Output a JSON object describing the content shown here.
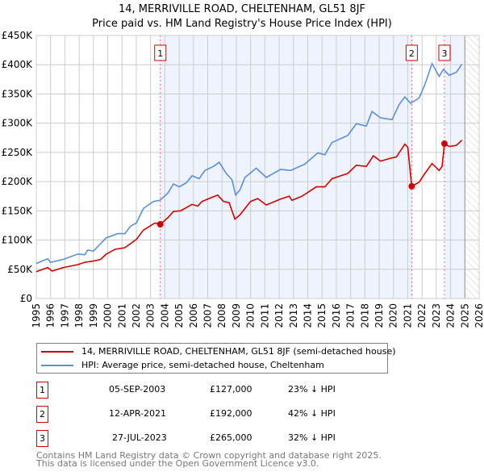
{
  "title": {
    "line1": "14, MERRIVILLE ROAD, CHELTENHAM, GL51 8JF",
    "line2": "Price paid vs. HM Land Registry's House Price Index (HPI)"
  },
  "chart_data": {
    "type": "line",
    "title": "14, MERRIVILLE ROAD, CHELTENHAM, GL51 8JF — Price paid vs. HM Land Registry's House Price Index (HPI)",
    "xlim": [
      1995,
      2026
    ],
    "ylim": [
      0,
      450000
    ],
    "x_ticks": [
      "1995",
      "1996",
      "1997",
      "1998",
      "1999",
      "2000",
      "2001",
      "2002",
      "2003",
      "2004",
      "2005",
      "2006",
      "2007",
      "2008",
      "2009",
      "2010",
      "2011",
      "2012",
      "2013",
      "2014",
      "2015",
      "2016",
      "2017",
      "2018",
      "2019",
      "2020",
      "2021",
      "2022",
      "2023",
      "2024",
      "2025",
      "2026"
    ],
    "y_ticks": [
      {
        "v": 0,
        "label": "£0"
      },
      {
        "v": 50000,
        "label": "£50K"
      },
      {
        "v": 100000,
        "label": "£100K"
      },
      {
        "v": 150000,
        "label": "£150K"
      },
      {
        "v": 200000,
        "label": "£200K"
      },
      {
        "v": 250000,
        "label": "£250K"
      },
      {
        "v": 300000,
        "label": "£300K"
      },
      {
        "v": 350000,
        "label": "£350K"
      },
      {
        "v": 400000,
        "label": "£400K"
      },
      {
        "v": 450000,
        "label": "£450K"
      }
    ],
    "grid": true,
    "future_hatch_from": 2025,
    "series": [
      {
        "name": "14, MERRIVILLE ROAD, CHELTENHAM, GL51 8JF (semi-detached house)",
        "color": "#cc0000",
        "points": [
          [
            1995,
            46
          ],
          [
            1995.8,
            53
          ],
          [
            1996.1,
            47
          ],
          [
            1996.9,
            53
          ],
          [
            1997.9,
            58
          ],
          [
            1998.4,
            62
          ],
          [
            1999,
            64
          ],
          [
            1999.5,
            67
          ],
          [
            1999.9,
            76
          ],
          [
            2000.5,
            84
          ],
          [
            2001.2,
            87
          ],
          [
            2001.6,
            94
          ],
          [
            2002,
            101
          ],
          [
            2002.5,
            117
          ],
          [
            2003.3,
            129
          ],
          [
            2003.68,
            127
          ],
          [
            2004.2,
            138
          ],
          [
            2004.6,
            149
          ],
          [
            2005.1,
            150
          ],
          [
            2005.9,
            161
          ],
          [
            2006.3,
            158
          ],
          [
            2006.6,
            166
          ],
          [
            2007.4,
            174
          ],
          [
            2007.7,
            177
          ],
          [
            2008.1,
            166
          ],
          [
            2008.5,
            164
          ],
          [
            2008.9,
            136
          ],
          [
            2009.25,
            143
          ],
          [
            2010,
            166
          ],
          [
            2010.5,
            171
          ],
          [
            2011.1,
            160
          ],
          [
            2012.1,
            170
          ],
          [
            2012.7,
            175
          ],
          [
            2012.9,
            168
          ],
          [
            2013.6,
            175
          ],
          [
            2014.6,
            191
          ],
          [
            2015.2,
            191
          ],
          [
            2015.7,
            205
          ],
          [
            2016.8,
            214
          ],
          [
            2017.4,
            228
          ],
          [
            2018.1,
            226
          ],
          [
            2018.6,
            244
          ],
          [
            2019.1,
            235
          ],
          [
            2019.8,
            240
          ],
          [
            2020.2,
            242
          ],
          [
            2020.8,
            264
          ],
          [
            2021.0,
            259
          ],
          [
            2021.28,
            192
          ],
          [
            2021.8,
            199
          ],
          [
            2022.2,
            214
          ],
          [
            2022.7,
            231
          ],
          [
            2023.2,
            219
          ],
          [
            2023.4,
            226
          ],
          [
            2023.57,
            265
          ],
          [
            2023.9,
            260
          ],
          [
            2024.4,
            262
          ],
          [
            2024.8,
            271
          ]
        ]
      },
      {
        "name": "HPI: Average price, semi-detached house, Cheltenham",
        "color": "#5b8fd6",
        "points": [
          [
            1995,
            60
          ],
          [
            1995.8,
            68
          ],
          [
            1996,
            62
          ],
          [
            1996.9,
            67
          ],
          [
            1997.9,
            76
          ],
          [
            1998.4,
            75
          ],
          [
            1998.6,
            83
          ],
          [
            1999,
            81
          ],
          [
            1999.9,
            104
          ],
          [
            2000.7,
            111
          ],
          [
            2001.2,
            111
          ],
          [
            2001.6,
            124
          ],
          [
            2002,
            129
          ],
          [
            2002.5,
            154
          ],
          [
            2003.2,
            166
          ],
          [
            2003.65,
            168
          ],
          [
            2004.2,
            180
          ],
          [
            2004.6,
            196
          ],
          [
            2005,
            191
          ],
          [
            2005.5,
            198
          ],
          [
            2005.9,
            210
          ],
          [
            2006.4,
            205
          ],
          [
            2006.8,
            219
          ],
          [
            2007.4,
            226
          ],
          [
            2007.8,
            233
          ],
          [
            2008.3,
            214
          ],
          [
            2008.7,
            203
          ],
          [
            2008.95,
            177
          ],
          [
            2009.26,
            186
          ],
          [
            2009.6,
            207
          ],
          [
            2010.4,
            223
          ],
          [
            2011.1,
            207
          ],
          [
            2012.1,
            221
          ],
          [
            2012.8,
            219
          ],
          [
            2013.8,
            230
          ],
          [
            2014.7,
            249
          ],
          [
            2015.2,
            246
          ],
          [
            2015.7,
            267
          ],
          [
            2016.8,
            279
          ],
          [
            2017.4,
            299
          ],
          [
            2018.1,
            295
          ],
          [
            2018.5,
            320
          ],
          [
            2019.1,
            309
          ],
          [
            2019.9,
            306
          ],
          [
            2020.4,
            332
          ],
          [
            2020.8,
            345
          ],
          [
            2021.2,
            334
          ],
          [
            2021.8,
            343
          ],
          [
            2022.2,
            366
          ],
          [
            2022.7,
            402
          ],
          [
            2023.2,
            380
          ],
          [
            2023.5,
            392
          ],
          [
            2023.9,
            382
          ],
          [
            2024.4,
            387
          ],
          [
            2024.8,
            401
          ]
        ]
      }
    ],
    "y_unit_multiplier": 1000,
    "sales": [
      {
        "label": "1",
        "year": 2003.68,
        "value": 127000
      },
      {
        "label": "2",
        "year": 2021.28,
        "value": 192000
      },
      {
        "label": "3",
        "year": 2023.57,
        "value": 265000
      }
    ]
  },
  "legend": {
    "property": "14, MERRIVILLE ROAD, CHELTENHAM, GL51 8JF (semi-detached house)",
    "hpi": "HPI: Average price, semi-detached house, Cheltenham"
  },
  "transactions": [
    {
      "num": "1",
      "date": "05-SEP-2003",
      "price": "£127,000",
      "hpi": "23% ↓ HPI"
    },
    {
      "num": "2",
      "date": "12-APR-2021",
      "price": "£192,000",
      "hpi": "42% ↓ HPI"
    },
    {
      "num": "3",
      "date": "27-JUL-2023",
      "price": "£265,000",
      "hpi": "32% ↓ HPI"
    }
  ],
  "footer": {
    "line1": "Contains HM Land Registry data © Crown copyright and database right 2025.",
    "line2": "This data is licensed under the Open Government Licence v3.0."
  }
}
